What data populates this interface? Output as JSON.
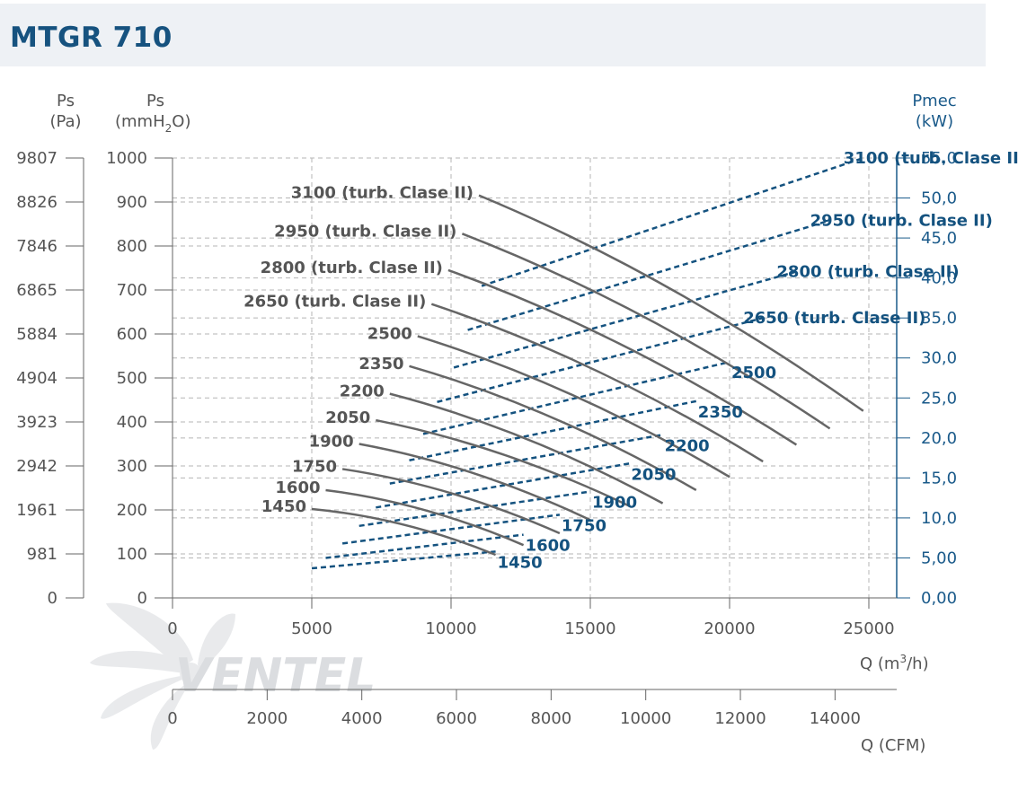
{
  "title": "MTGR 710",
  "logo_text": "VENTEL",
  "axes": {
    "pa_label": "Ps",
    "pa_unit": "(Pa)",
    "mm_label": "Ps",
    "mm_unit_a": "(mmH",
    "mm_unit_sub": "2",
    "mm_unit_b": "O)",
    "kw_label": "Pmec",
    "kw_unit": "(kW)",
    "q_label_a": "Q (m",
    "q_label_sup": "3",
    "q_label_b": "/h)",
    "cfm_label": "Q (CFM)",
    "pa_ticks": [
      "9807",
      "8826",
      "7846",
      "6865",
      "5884",
      "4904",
      "3923",
      "2942",
      "1961",
      "981",
      "0"
    ],
    "mm_ticks": [
      "1000",
      "900",
      "800",
      "700",
      "600",
      "500",
      "400",
      "300",
      "200",
      "100",
      "0"
    ],
    "kw_ticks": [
      "55,0",
      "50,0",
      "45,0",
      "40,0",
      "35,0",
      "30,0",
      "25,0",
      "20,0",
      "15,0",
      "10,0",
      "5,00",
      "0,00"
    ],
    "q_ticks": [
      "0",
      "5000",
      "10000",
      "15000",
      "20000",
      "25000"
    ],
    "cfm_ticks": [
      "0",
      "2000",
      "4000",
      "6000",
      "8000",
      "10000",
      "12000",
      "14000"
    ]
  },
  "chart_data": {
    "type": "line",
    "xlabel": "Q (m3/h)",
    "x2label": "Q (CFM)",
    "ylabel": "Ps (mmH2O)",
    "y2label": "Ps (Pa)",
    "y3label": "Pmec (kW)",
    "xlim": [
      0,
      26000
    ],
    "ylim": [
      0,
      1000
    ],
    "y3lim": [
      0,
      55
    ],
    "grid": true,
    "pressure_curves": [
      {
        "name": "1450",
        "points": [
          [
            5000,
            202
          ],
          [
            11600,
            98
          ]
        ]
      },
      {
        "name": "1600",
        "points": [
          [
            5500,
            245
          ],
          [
            12600,
            120
          ]
        ]
      },
      {
        "name": "1750",
        "points": [
          [
            6100,
            293
          ],
          [
            13900,
            147
          ]
        ]
      },
      {
        "name": "1900",
        "points": [
          [
            6700,
            350
          ],
          [
            15000,
            177
          ]
        ]
      },
      {
        "name": "2050",
        "points": [
          [
            7300,
            404
          ],
          [
            16400,
            209
          ]
        ]
      },
      {
        "name": "2200",
        "points": [
          [
            7800,
            464
          ],
          [
            17600,
            215
          ]
        ]
      },
      {
        "name": "2350",
        "points": [
          [
            8500,
            527
          ],
          [
            18800,
            245
          ]
        ]
      },
      {
        "name": "2500",
        "points": [
          [
            8800,
            595
          ],
          [
            20000,
            275
          ]
        ]
      },
      {
        "name": "2650 (turb. Clase II)",
        "points": [
          [
            9300,
            668
          ],
          [
            21200,
            310
          ]
        ]
      },
      {
        "name": "2800 (turb. Clase II)",
        "points": [
          [
            9900,
            745
          ],
          [
            22400,
            348
          ]
        ]
      },
      {
        "name": "2950 (turb. Clase II)",
        "points": [
          [
            10400,
            828
          ],
          [
            23600,
            385
          ]
        ]
      },
      {
        "name": "3100 (turb. Clase II)",
        "points": [
          [
            11000,
            915
          ],
          [
            24800,
            425
          ]
        ]
      }
    ],
    "power_curves": [
      {
        "name": "1450",
        "points": [
          [
            5000,
            3.7
          ],
          [
            11600,
            5.8
          ]
        ]
      },
      {
        "name": "1600",
        "points": [
          [
            5500,
            5.0
          ],
          [
            12600,
            7.9
          ]
        ]
      },
      {
        "name": "1750",
        "points": [
          [
            6100,
            6.8
          ],
          [
            13900,
            10.4
          ]
        ]
      },
      {
        "name": "1900",
        "points": [
          [
            6700,
            9.0
          ],
          [
            15000,
            13.3
          ]
        ]
      },
      {
        "name": "2050",
        "points": [
          [
            7300,
            11.3
          ],
          [
            16400,
            16.8
          ]
        ]
      },
      {
        "name": "2200",
        "points": [
          [
            7800,
            14.3
          ],
          [
            17600,
            20.4
          ]
        ]
      },
      {
        "name": "2350",
        "points": [
          [
            8500,
            17.2
          ],
          [
            18800,
            24.6
          ]
        ]
      },
      {
        "name": "2500",
        "points": [
          [
            9000,
            20.5
          ],
          [
            20000,
            29.5
          ]
        ]
      },
      {
        "name": "2650 (turb. Clase II)",
        "points": [
          [
            9500,
            24.5
          ],
          [
            21200,
            35.0
          ]
        ]
      },
      {
        "name": "2800 (turb. Clase II)",
        "points": [
          [
            10100,
            28.8
          ],
          [
            22400,
            40.8
          ]
        ]
      },
      {
        "name": "2950 (turb. Clase II)",
        "points": [
          [
            10600,
            33.5
          ],
          [
            23600,
            47.2
          ]
        ]
      },
      {
        "name": "3100 (turb. Clase II)",
        "points": [
          [
            11100,
            39.0
          ],
          [
            24800,
            55.0
          ]
        ]
      }
    ]
  }
}
